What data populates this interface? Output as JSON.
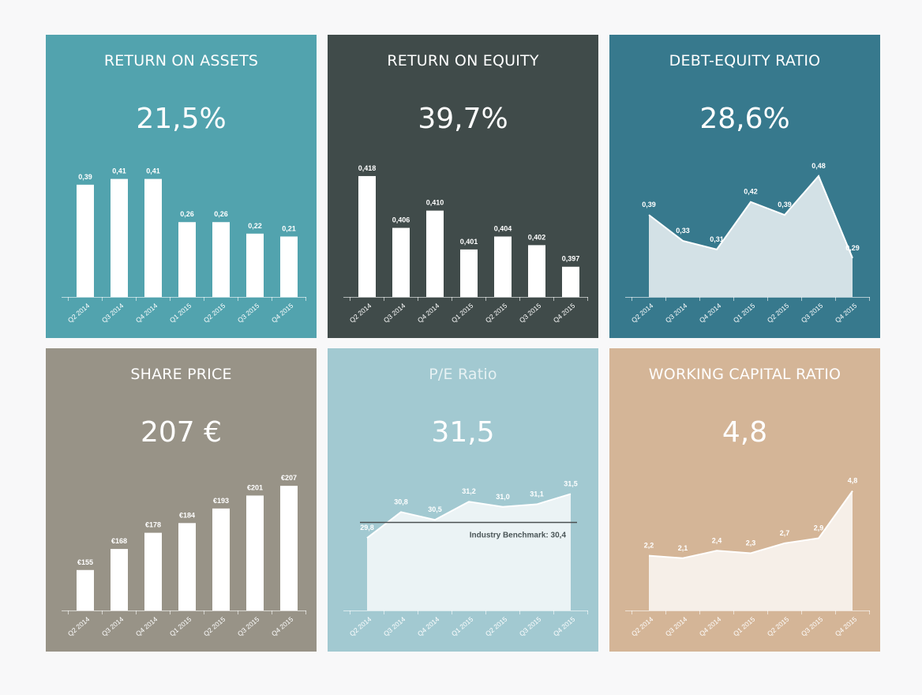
{
  "cards": [
    {
      "title": "RETURN ON ASSETS",
      "value": "21,5%",
      "color": "#52a3ae",
      "chart_data": {
        "type": "bar",
        "categories": [
          "Q2 2014",
          "Q3 2014",
          "Q4 2014",
          "Q1 2015",
          "Q2 2015",
          "Q3 2015",
          "Q4 2015"
        ],
        "values": [
          0.39,
          0.41,
          0.41,
          0.26,
          0.26,
          0.22,
          0.21
        ],
        "labels": [
          "0,39",
          "0,41",
          "0,41",
          "0,26",
          "0,26",
          "0,22",
          "0,21"
        ],
        "ylim": [
          0,
          0.45
        ]
      }
    },
    {
      "title": "RETURN ON EQUITY",
      "value": "39,7%",
      "color": "#404b4a",
      "chart_data": {
        "type": "bar",
        "categories": [
          "Q2 2014",
          "Q3 2014",
          "Q4 2014",
          "Q1 2015",
          "Q2 2015",
          "Q3 2015",
          "Q4 2015"
        ],
        "values": [
          0.418,
          0.406,
          0.41,
          0.401,
          0.404,
          0.402,
          0.397
        ],
        "labels": [
          "0,418",
          "0,406",
          "0,410",
          "0,401",
          "0,404",
          "0,402",
          "0,397"
        ],
        "ylim": [
          0.39,
          0.42
        ]
      }
    },
    {
      "title": "DEBT-EQUITY RATIO",
      "value": "28,6%",
      "color": "#37798d",
      "chart_data": {
        "type": "area",
        "categories": [
          "Q2 2014",
          "Q3 2014",
          "Q4 2014",
          "Q1 2015",
          "Q2 2015",
          "Q3 2015",
          "Q4 2015"
        ],
        "values": [
          0.39,
          0.33,
          0.31,
          0.42,
          0.39,
          0.48,
          0.29
        ],
        "labels": [
          "0,39",
          "0,33",
          "0,31",
          "0,42",
          "0,39",
          "0,48",
          "0,29"
        ],
        "ylim": [
          0.2,
          0.5
        ]
      }
    },
    {
      "title": "SHARE PRICE",
      "value": "207 €",
      "color": "#989387",
      "chart_data": {
        "type": "bar",
        "categories": [
          "Q2 2014",
          "Q3 2014",
          "Q4 2014",
          "Q1 2015",
          "Q2 2015",
          "Q3 2015",
          "Q4 2015"
        ],
        "values": [
          155,
          168,
          178,
          184,
          193,
          201,
          207
        ],
        "labels": [
          "€155",
          "€168",
          "€178",
          "€184",
          "€193",
          "€201",
          "€207"
        ],
        "ylim": [
          130,
          210
        ]
      }
    },
    {
      "title": "P/E Ratio",
      "value": "31,5",
      "color": "#a2c9d1",
      "benchmark": {
        "label": "Industry Benchmark: 30,4",
        "value": 30.4
      },
      "chart_data": {
        "type": "area",
        "categories": [
          "Q2 2014",
          "Q3 2014",
          "Q4 2014",
          "Q1 2015",
          "Q2 2015",
          "Q3 2015",
          "Q4 2015"
        ],
        "values": [
          29.8,
          30.8,
          30.5,
          31.2,
          31.0,
          31.1,
          31.5
        ],
        "labels": [
          "29,8",
          "30,8",
          "30,5",
          "31,2",
          "31,0",
          "31,1",
          "31,5"
        ],
        "ylim": [
          27,
          32
        ]
      }
    },
    {
      "title": "WORKING CAPITAL RATIO",
      "value": "4,8",
      "color": "#d4b597",
      "chart_data": {
        "type": "area",
        "categories": [
          "Q2 2014",
          "Q3 2014",
          "Q4 2014",
          "Q1 2015",
          "Q2 2015",
          "Q3 2015",
          "Q4 2015"
        ],
        "values": [
          2.2,
          2.1,
          2.4,
          2.3,
          2.7,
          2.9,
          4.8
        ],
        "labels": [
          "2,2",
          "2,1",
          "2,4",
          "2,3",
          "2,7",
          "2,9",
          "4,8"
        ],
        "ylim": [
          0,
          5.2
        ]
      }
    }
  ]
}
